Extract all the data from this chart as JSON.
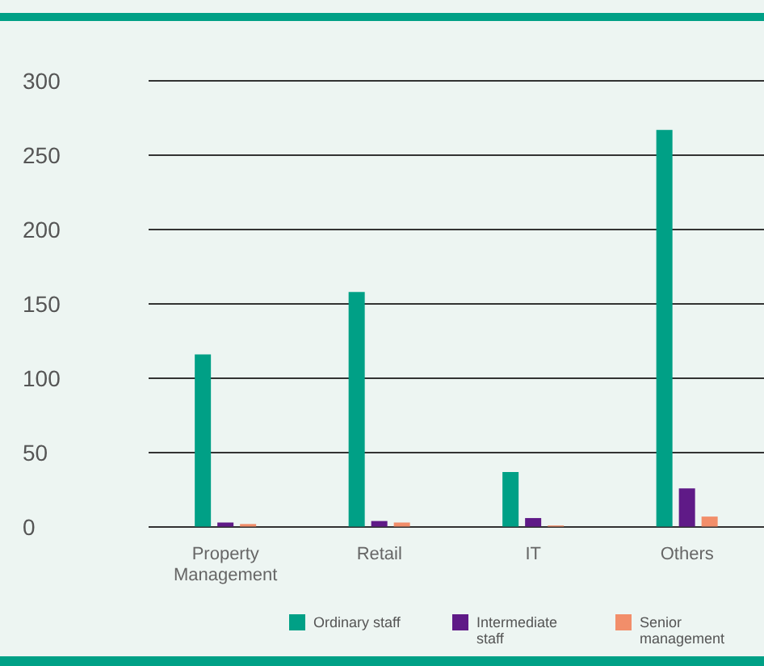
{
  "chart_data": {
    "type": "bar",
    "categories": [
      "Property Management",
      "Retail",
      "IT",
      "Others"
    ],
    "series": [
      {
        "name": "Ordinary staff",
        "color": "#00a086",
        "values": [
          116,
          158,
          37,
          267
        ]
      },
      {
        "name": "Intermediate staff",
        "color": "#5f1a87",
        "values": [
          3,
          4,
          6,
          26
        ]
      },
      {
        "name": "Senior management",
        "color": "#f28e6a",
        "values": [
          2,
          3,
          1,
          7
        ]
      }
    ],
    "ylim": [
      0,
      300
    ],
    "yticks": [
      0,
      50,
      100,
      150,
      200,
      250,
      300
    ],
    "grid": "y",
    "legend": "bottom"
  }
}
